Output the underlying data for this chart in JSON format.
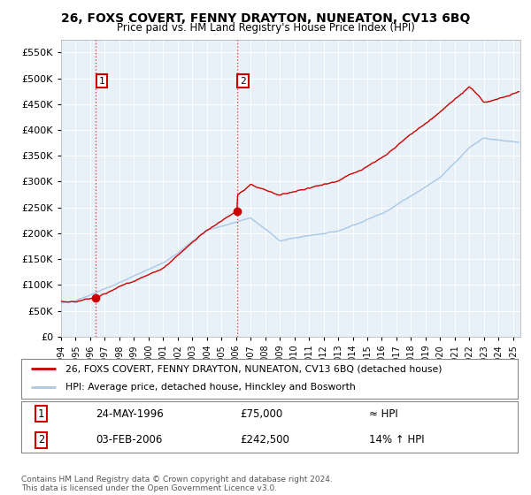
{
  "title": "26, FOXS COVERT, FENNY DRAYTON, NUNEATON, CV13 6BQ",
  "subtitle": "Price paid vs. HM Land Registry's House Price Index (HPI)",
  "legend_line1": "26, FOXS COVERT, FENNY DRAYTON, NUNEATON, CV13 6BQ (detached house)",
  "legend_line2": "HPI: Average price, detached house, Hinckley and Bosworth",
  "sale1_date": "24-MAY-1996",
  "sale1_price": "£75,000",
  "sale1_note": "≈ HPI",
  "sale2_date": "03-FEB-2006",
  "sale2_price": "£242,500",
  "sale2_note": "14% ↑ HPI",
  "footer": "Contains HM Land Registry data © Crown copyright and database right 2024.\nThis data is licensed under the Open Government Licence v3.0.",
  "ylim": [
    0,
    575000
  ],
  "yticks": [
    0,
    50000,
    100000,
    150000,
    200000,
    250000,
    300000,
    350000,
    400000,
    450000,
    500000,
    550000
  ],
  "sale1_x": 1996.38,
  "sale1_y": 75000,
  "sale2_x": 2006.08,
  "sale2_y": 242500,
  "hpi_color": "#a8c8e8",
  "price_color": "#cc0000",
  "bg_color": "#e8f0f8",
  "box_color": "#cc0000",
  "xmin": 1994,
  "xmax": 2025.5
}
